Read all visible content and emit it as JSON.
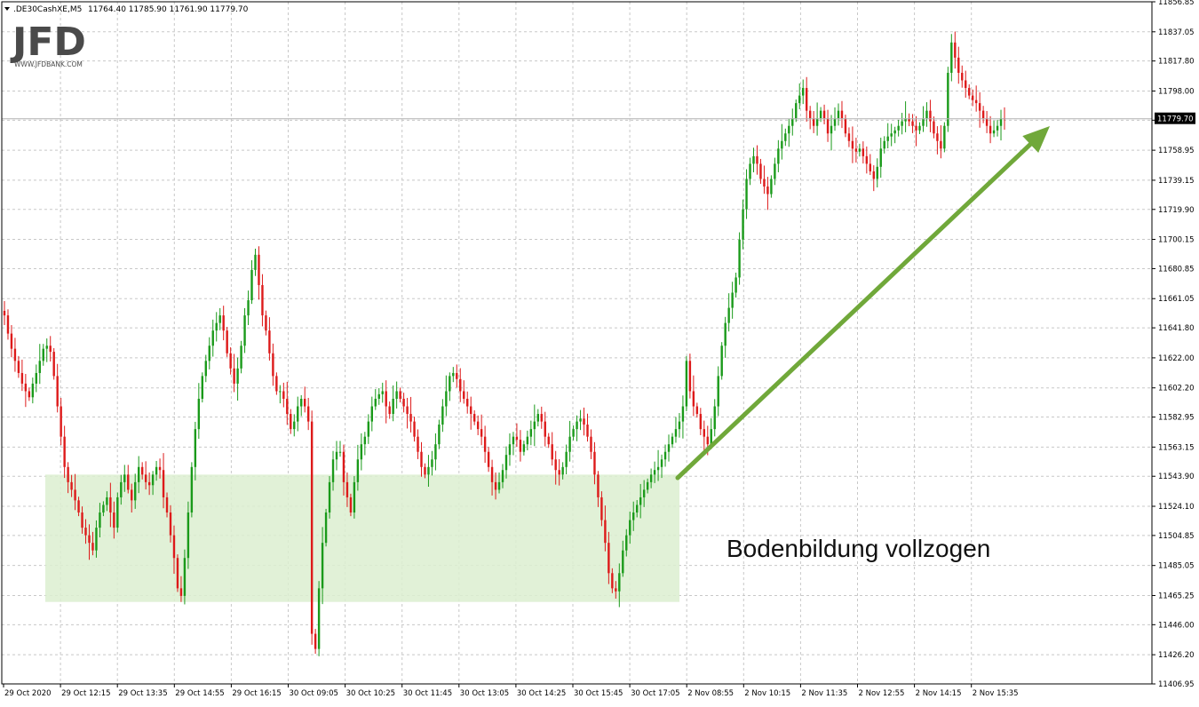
{
  "header": {
    "symbol": ".DE30CashXE,M5",
    "ohlc": "11764.40 11785.90 11761.90 11779.70"
  },
  "logo": {
    "mark": "JFD",
    "sub": "WWW.JFDBANK.COM"
  },
  "colors": {
    "bull": "#1a9a1a",
    "bear": "#dd1a1a",
    "grid": "#c8c8c8",
    "zone": "#dcefd0",
    "arrow": "#70a83a"
  },
  "chart_data": {
    "type": "candlestick",
    "instrument": ".DE30CashXE,M5",
    "ylim": [
      11406.95,
      11856.85
    ],
    "y_ticks": [
      "11856.85",
      "11837.05",
      "11817.80",
      "11798.00",
      "11778.75",
      "11758.95",
      "11739.15",
      "11719.90",
      "11700.15",
      "11680.85",
      "11661.05",
      "11641.80",
      "11622.00",
      "11602.20",
      "11582.95",
      "11563.15",
      "11543.90",
      "11524.10",
      "11504.85",
      "11485.05",
      "11465.25",
      "11446.00",
      "11426.20",
      "11406.95"
    ],
    "x_ticks": [
      "29 Oct 2020",
      "29 Oct 12:15",
      "29 Oct 13:35",
      "29 Oct 14:55",
      "29 Oct 16:15",
      "30 Oct 09:05",
      "30 Oct 10:25",
      "30 Oct 11:45",
      "30 Oct 13:05",
      "30 Oct 14:25",
      "30 Oct 15:45",
      "30 Oct 17:05",
      "2 Nov 08:55",
      "2 Nov 10:15",
      "2 Nov 11:35",
      "2 Nov 12:55",
      "2 Nov 14:15",
      "2 Nov 15:35"
    ],
    "last_price": "11779.70",
    "bottom_zone": {
      "low": 11461,
      "high": 11545
    },
    "annotation": "Bodenbildung vollzogen",
    "closes": [
      11650,
      11638,
      11628,
      11620,
      11612,
      11605,
      11600,
      11596,
      11605,
      11612,
      11620,
      11628,
      11630,
      11626,
      11610,
      11590,
      11570,
      11550,
      11540,
      11535,
      11528,
      11520,
      11510,
      11505,
      11500,
      11495,
      11510,
      11520,
      11525,
      11530,
      11520,
      11510,
      11530,
      11540,
      11545,
      11535,
      11528,
      11540,
      11550,
      11545,
      11540,
      11538,
      11545,
      11550,
      11548,
      11530,
      11520,
      11505,
      11490,
      11470,
      11465,
      11490,
      11520,
      11550,
      11575,
      11595,
      11610,
      11620,
      11630,
      11640,
      11645,
      11650,
      11640,
      11625,
      11615,
      11605,
      11615,
      11630,
      11650,
      11660,
      11680,
      11690,
      11670,
      11650,
      11640,
      11625,
      11610,
      11600,
      11600,
      11595,
      11585,
      11575,
      11580,
      11590,
      11595,
      11590,
      11580,
      11440,
      11430,
      11470,
      11500,
      11520,
      11540,
      11555,
      11560,
      11560,
      11540,
      11530,
      11520,
      11540,
      11555,
      11565,
      11570,
      11580,
      11590,
      11595,
      11598,
      11600,
      11590,
      11585,
      11595,
      11600,
      11595,
      11590,
      11585,
      11580,
      11570,
      11560,
      11550,
      11545,
      11550,
      11555,
      11565,
      11578,
      11590,
      11600,
      11610,
      11612,
      11608,
      11600,
      11595,
      11590,
      11585,
      11580,
      11575,
      11570,
      11560,
      11550,
      11540,
      11535,
      11540,
      11548,
      11558,
      11565,
      11570,
      11568,
      11560,
      11565,
      11570,
      11575,
      11580,
      11585,
      11580,
      11570,
      11565,
      11555,
      11548,
      11545,
      11550,
      11560,
      11570,
      11575,
      11580,
      11582,
      11578,
      11570,
      11560,
      11545,
      11530,
      11515,
      11500,
      11480,
      11470,
      11468,
      11480,
      11495,
      11505,
      11515,
      11520,
      11525,
      11530,
      11535,
      11540,
      11545,
      11548,
      11550,
      11555,
      11560,
      11565,
      11570,
      11575,
      11580,
      11590,
      11620,
      11600,
      11590,
      11585,
      11575,
      11570,
      11565,
      11575,
      11590,
      11610,
      11630,
      11645,
      11655,
      11665,
      11675,
      11700,
      11720,
      11740,
      11750,
      11755,
      11750,
      11740,
      11735,
      11730,
      11740,
      11750,
      11760,
      11765,
      11770,
      11775,
      11780,
      11790,
      11795,
      11800,
      11785,
      11780,
      11775,
      11780,
      11785,
      11780,
      11770,
      11775,
      11780,
      11785,
      11780,
      11770,
      11765,
      11760,
      11758,
      11760,
      11755,
      11750,
      11745,
      11740,
      11748,
      11760,
      11765,
      11768,
      11770,
      11772,
      11775,
      11778,
      11780,
      11778,
      11775,
      11772,
      11775,
      11780,
      11785,
      11778,
      11770,
      11765,
      11760,
      11775,
      11810,
      11830,
      11820,
      11810,
      11805,
      11800,
      11795,
      11792,
      11790,
      11785,
      11780,
      11775,
      11770,
      11772,
      11775,
      11780,
      11779.7
    ]
  }
}
